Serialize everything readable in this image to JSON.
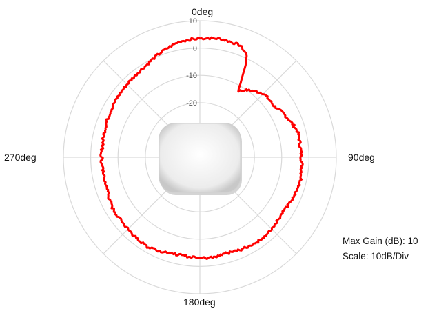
{
  "chart_data": {
    "type": "polar-line",
    "direction_labels": {
      "top": "0deg",
      "right": "90deg",
      "bottom": "180deg",
      "left": "270deg"
    },
    "ring_ticks": [
      "10",
      "0",
      "-10",
      "-20"
    ],
    "r_range_db": [
      -40,
      10
    ],
    "grid": true,
    "info": {
      "max_gain_label": "Max Gain (dB): 10",
      "scale_label": "Scale: 10dB/Div"
    },
    "series": [
      {
        "color": "#ff0000",
        "points": [
          [
            0,
            3.5
          ],
          [
            10,
            4
          ],
          [
            20,
            3.5
          ],
          [
            25,
            1
          ],
          [
            28,
            -7
          ],
          [
            30,
            -12
          ],
          [
            35,
            -10
          ],
          [
            45,
            -7
          ],
          [
            55,
            -7
          ],
          [
            65,
            -5
          ],
          [
            75,
            -3
          ],
          [
            85,
            -3
          ],
          [
            95,
            -2.5
          ],
          [
            105,
            -2
          ],
          [
            115,
            -3
          ],
          [
            125,
            -3.5
          ],
          [
            135,
            -3
          ],
          [
            145,
            -2.5
          ],
          [
            155,
            -3
          ],
          [
            165,
            -3.5
          ],
          [
            175,
            -3
          ],
          [
            180,
            -3
          ],
          [
            190,
            -3.5
          ],
          [
            200,
            -3
          ],
          [
            210,
            -2
          ],
          [
            220,
            -2.5
          ],
          [
            230,
            -3
          ],
          [
            240,
            -3
          ],
          [
            250,
            -4
          ],
          [
            260,
            -4
          ],
          [
            270,
            -4
          ],
          [
            280,
            -4
          ],
          [
            290,
            -3.5
          ],
          [
            300,
            -3
          ],
          [
            310,
            -2.5
          ],
          [
            320,
            -2
          ],
          [
            330,
            -1
          ],
          [
            340,
            1
          ],
          [
            350,
            3
          ]
        ]
      }
    ],
    "center_marker": "device-icon"
  }
}
